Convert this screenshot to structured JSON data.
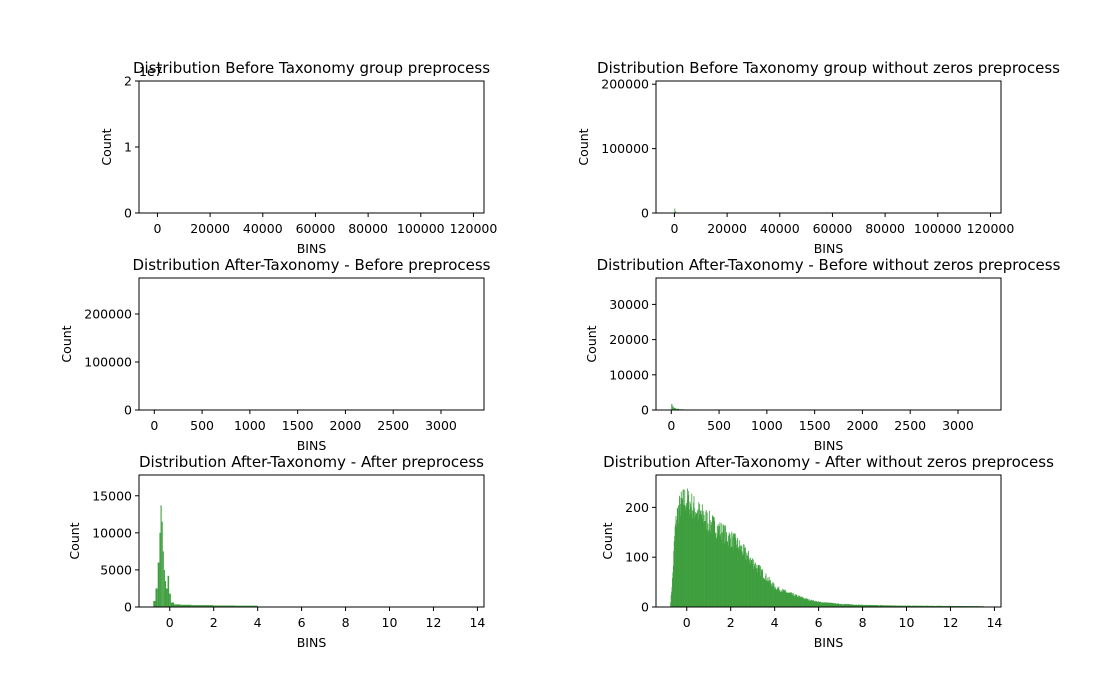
{
  "chart_data": [
    {
      "type": "histogram",
      "title": "Distribution Before Taxonomy group preprocess",
      "xlabel": "BINS",
      "ylabel": "Count",
      "y_offset_text": "1e7",
      "xlim": [
        -7000,
        124000
      ],
      "ylim": [
        0,
        20000000
      ],
      "xticks": [
        0,
        20000,
        40000,
        60000,
        80000,
        100000,
        120000
      ],
      "xtick_labels": [
        "0",
        "20000",
        "40000",
        "60000",
        "80000",
        "100000",
        "120000"
      ],
      "yticks": [
        0,
        10000000,
        20000000
      ],
      "ytick_labels": [
        "0",
        "1",
        "2"
      ],
      "color": "#3f9f3f",
      "bars": [
        [
          0,
          200,
          15000
        ]
      ]
    },
    {
      "type": "histogram",
      "title": "Distribution Before Taxonomy group without zeros preprocess",
      "xlabel": "BINS",
      "ylabel": "Count",
      "xlim": [
        -7000,
        124000
      ],
      "ylim": [
        0,
        205000
      ],
      "xticks": [
        0,
        20000,
        40000,
        60000,
        80000,
        100000,
        120000
      ],
      "xtick_labels": [
        "0",
        "20000",
        "40000",
        "60000",
        "80000",
        "100000",
        "120000"
      ],
      "yticks": [
        0,
        100000,
        200000
      ],
      "ytick_labels": [
        "0",
        "100000",
        "200000"
      ],
      "color": "#3f9f3f",
      "bars": [
        [
          0,
          250,
          7000
        ],
        [
          250,
          600,
          2500
        ],
        [
          600,
          1200,
          800
        ],
        [
          1200,
          2500,
          200
        ]
      ]
    },
    {
      "type": "histogram",
      "title": "Distribution After-Taxonomy - Before preprocess",
      "xlabel": "BINS",
      "ylabel": "Count",
      "xlim": [
        -160,
        3450
      ],
      "ylim": [
        0,
        275000
      ],
      "xticks": [
        0,
        500,
        1000,
        1500,
        2000,
        2500,
        3000
      ],
      "xtick_labels": [
        "0",
        "500",
        "1000",
        "1500",
        "2000",
        "2500",
        "3000"
      ],
      "yticks": [
        0,
        100000,
        200000
      ],
      "ytick_labels": [
        "0",
        "100000",
        "200000"
      ],
      "color": "#3f9f3f",
      "bars": [
        [
          0,
          15,
          1500
        ]
      ]
    },
    {
      "type": "histogram",
      "title": "Distribution After-Taxonomy - Before without zeros preprocess",
      "xlabel": "BINS",
      "ylabel": "Count",
      "xlim": [
        -160,
        3450
      ],
      "ylim": [
        0,
        37500
      ],
      "xticks": [
        0,
        500,
        1000,
        1500,
        2000,
        2500,
        3000
      ],
      "xtick_labels": [
        "0",
        "500",
        "1000",
        "1500",
        "2000",
        "2500",
        "3000"
      ],
      "yticks": [
        0,
        10000,
        20000,
        30000
      ],
      "ytick_labels": [
        "0",
        "10000",
        "20000",
        "30000"
      ],
      "color": "#3f9f3f",
      "bars": [
        [
          0,
          12,
          1700
        ],
        [
          12,
          25,
          1000
        ],
        [
          25,
          45,
          600
        ],
        [
          45,
          80,
          350
        ],
        [
          80,
          130,
          200
        ],
        [
          130,
          200,
          100
        ]
      ]
    },
    {
      "type": "histogram",
      "title": "Distribution After-Taxonomy - After preprocess",
      "xlabel": "BINS",
      "ylabel": "Count",
      "xlim": [
        -1.4,
        14.3
      ],
      "ylim": [
        0,
        17800
      ],
      "xticks": [
        0,
        2,
        4,
        6,
        8,
        10,
        12,
        14
      ],
      "xtick_labels": [
        "0",
        "2",
        "4",
        "6",
        "8",
        "10",
        "12",
        "14"
      ],
      "yticks": [
        0,
        5000,
        10000,
        15000
      ],
      "ytick_labels": [
        "0",
        "5000",
        "10000",
        "15000"
      ],
      "color": "#3f9f3f",
      "bars": [
        [
          -0.75,
          -0.65,
          800
        ],
        [
          -0.65,
          -0.55,
          2500
        ],
        [
          -0.55,
          -0.47,
          6000
        ],
        [
          -0.47,
          -0.42,
          10000
        ],
        [
          -0.42,
          -0.37,
          13700
        ],
        [
          -0.37,
          -0.32,
          11500
        ],
        [
          -0.32,
          -0.27,
          7500
        ],
        [
          -0.27,
          -0.22,
          5000
        ],
        [
          -0.22,
          -0.17,
          3500
        ],
        [
          -0.17,
          -0.1,
          2500
        ],
        [
          -0.1,
          -0.03,
          4200
        ],
        [
          -0.03,
          0.05,
          1800
        ],
        [
          0.05,
          0.2,
          600
        ],
        [
          0.2,
          0.5,
          350
        ],
        [
          0.5,
          1.0,
          300
        ],
        [
          1.0,
          2.0,
          250
        ],
        [
          2.0,
          3.0,
          200
        ],
        [
          3.0,
          4.0,
          180
        ],
        [
          4.0,
          5.0,
          60
        ],
        [
          5.0,
          8.0,
          20
        ],
        [
          8.0,
          13.5,
          8
        ]
      ]
    },
    {
      "type": "histogram",
      "title": "Distribution After-Taxonomy - After without zeros preprocess",
      "xlabel": "BINS",
      "ylabel": "Count",
      "xlim": [
        -1.4,
        14.3
      ],
      "ylim": [
        0,
        265
      ],
      "xticks": [
        0,
        2,
        4,
        6,
        8,
        10,
        12,
        14
      ],
      "xtick_labels": [
        "0",
        "2",
        "4",
        "6",
        "8",
        "10",
        "12",
        "14"
      ],
      "yticks": [
        0,
        100,
        200
      ],
      "ytick_labels": [
        "0",
        "100",
        "200"
      ],
      "color": "#3f9f3f",
      "profile": [
        [
          -0.75,
          5
        ],
        [
          -0.65,
          60
        ],
        [
          -0.55,
          150
        ],
        [
          -0.45,
          185
        ],
        [
          -0.3,
          205
        ],
        [
          -0.1,
          215
        ],
        [
          0.1,
          210
        ],
        [
          0.3,
          200
        ],
        [
          0.5,
          190
        ],
        [
          0.8,
          180
        ],
        [
          1.0,
          170
        ],
        [
          1.3,
          160
        ],
        [
          1.6,
          150
        ],
        [
          1.9,
          140
        ],
        [
          2.2,
          130
        ],
        [
          2.5,
          115
        ],
        [
          2.8,
          100
        ],
        [
          3.1,
          85
        ],
        [
          3.4,
          70
        ],
        [
          3.7,
          55
        ],
        [
          4.0,
          40
        ],
        [
          4.5,
          30
        ],
        [
          5.0,
          22
        ],
        [
          5.5,
          15
        ],
        [
          6.0,
          10
        ],
        [
          7.0,
          6
        ],
        [
          8.0,
          4
        ],
        [
          10.0,
          2.5
        ],
        [
          12.0,
          2
        ],
        [
          13.5,
          1.5
        ]
      ],
      "bin_width": 0.02
    }
  ]
}
